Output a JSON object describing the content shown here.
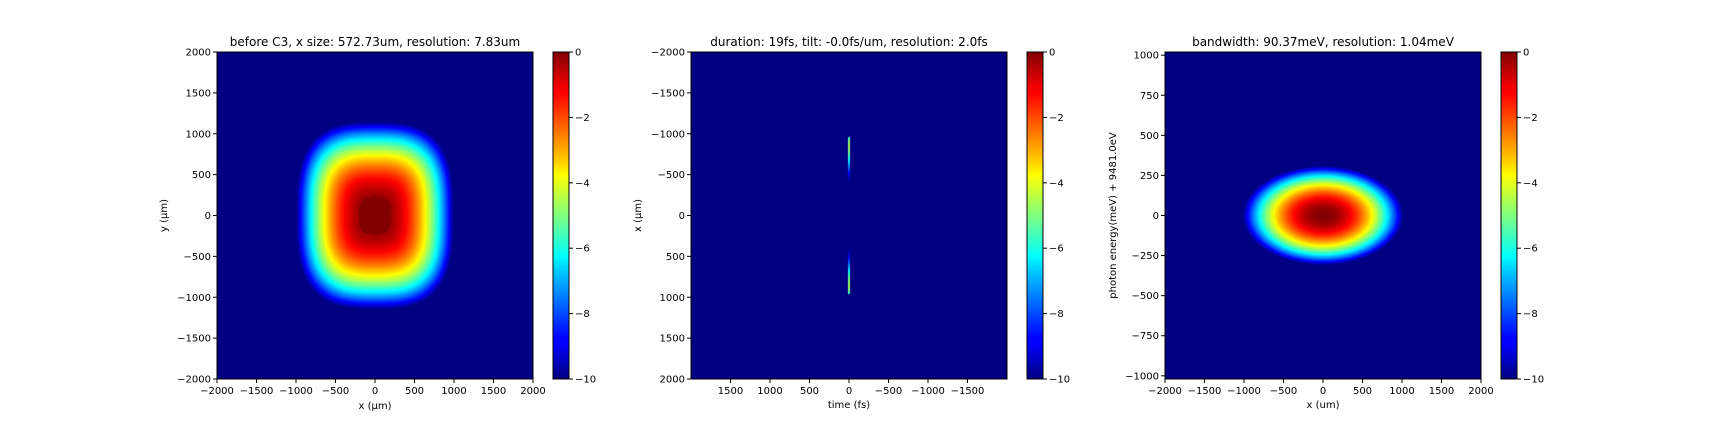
{
  "figure": {
    "background": "#ffffff",
    "colormap": "jet"
  },
  "chart_data": [
    {
      "type": "heatmap",
      "title": "before C3, x size: 572.73um, resolution: 7.83um",
      "xlabel": "x (μm)",
      "ylabel": "y (μm)",
      "xlim": [
        -2000,
        2000
      ],
      "ylim": [
        -2000,
        2000
      ],
      "x_ticks": [
        -2000,
        -1500,
        -1000,
        -500,
        0,
        500,
        1000,
        1500,
        2000
      ],
      "y_ticks": [
        2000,
        1500,
        1000,
        500,
        0,
        -500,
        -1000,
        -1500,
        -2000
      ],
      "y_direction": "up",
      "x_direction": "right",
      "shape": "flat-top",
      "center": [
        0,
        0
      ],
      "x_radius_at_minus10": 1000,
      "y_radius_at_minus10": 1150,
      "colorbar": {
        "min": -10,
        "max": 0,
        "ticks": [
          0,
          -2,
          -4,
          -6,
          -8,
          -10
        ]
      }
    },
    {
      "type": "heatmap",
      "title": "duration: 19fs, tilt: -0.0fs/um, resolution: 2.0fs",
      "xlabel": "time (fs)",
      "ylabel": "x (μm)",
      "xlim": [
        2000,
        -2000
      ],
      "ylim": [
        2000,
        -2000
      ],
      "x_ticks": [
        1500,
        1000,
        500,
        0,
        -500,
        -1000,
        -1500
      ],
      "y_ticks": [
        -2000,
        -1500,
        -1000,
        -500,
        0,
        500,
        1000,
        1500,
        2000
      ],
      "y_direction": "down",
      "x_direction": "left",
      "shape": "thin-ring",
      "center": [
        0,
        0
      ],
      "x_radius_at_minus10": 16,
      "y_radius_at_minus10": 1050,
      "colorbar": {
        "min": -10,
        "max": 0,
        "ticks": [
          0,
          -2,
          -4,
          -6,
          -8,
          -10
        ]
      }
    },
    {
      "type": "heatmap",
      "title": "bandwidth: 90.37meV, resolution: 1.04meV",
      "xlabel": "x (um)",
      "ylabel": "photon energy(meV) + 9481.0eV",
      "xlim": [
        -2000,
        2000
      ],
      "ylim": [
        -1020,
        1020
      ],
      "x_ticks": [
        -2000,
        -1500,
        -1000,
        -500,
        0,
        500,
        1000,
        1500,
        2000
      ],
      "y_ticks": [
        1000,
        750,
        500,
        250,
        0,
        -250,
        -500,
        -750,
        -1000
      ],
      "y_direction": "up",
      "x_direction": "right",
      "shape": "gaussian",
      "center": [
        0,
        0
      ],
      "x_radius_at_minus10": 1020,
      "y_radius_at_minus10": 310,
      "colorbar": {
        "min": -10,
        "max": 0,
        "ticks": [
          0,
          -2,
          -4,
          -6,
          -8,
          -10
        ]
      }
    }
  ]
}
